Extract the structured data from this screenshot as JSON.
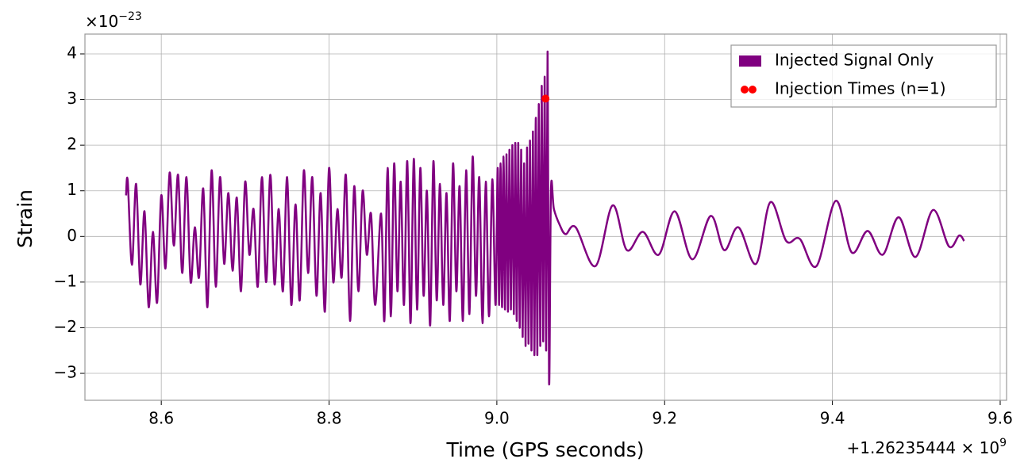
{
  "chart_data": {
    "type": "line",
    "x_label": "Time (GPS seconds)",
    "y_label": "Strain",
    "y_multiplier": "×10",
    "y_exponent": "−23",
    "x_offset": "+1.26235444 × 10",
    "x_offset_exponent": "9",
    "grid": true,
    "legend": "upper right",
    "xlim": [
      8.509,
      9.6076
    ],
    "ylim": [
      -3.59,
      4.434
    ],
    "xticks": [
      8.6,
      8.8,
      {
        "value": 9.0,
        "label": "9.0"
      },
      9.2,
      9.4,
      9.6
    ],
    "yticks": [
      {
        "value": -3,
        "label": "−3"
      },
      {
        "value": -2,
        "label": "−2"
      },
      {
        "value": -1,
        "label": "−1"
      },
      0,
      1,
      2,
      3,
      4
    ],
    "series": [
      {
        "name": "Injected Signal Only",
        "type": "line",
        "color": "#800080",
        "x": [
          8.558,
          8.56,
          8.565,
          8.57,
          8.575,
          8.58,
          8.585,
          8.59,
          8.595,
          8.6,
          8.605,
          8.61,
          8.615,
          8.62,
          8.625,
          8.63,
          8.635,
          8.64,
          8.645,
          8.65,
          8.655,
          8.66,
          8.665,
          8.67,
          8.675,
          8.68,
          8.685,
          8.69,
          8.695,
          8.7,
          8.705,
          8.71,
          8.715,
          8.72,
          8.725,
          8.73,
          8.735,
          8.74,
          8.745,
          8.75,
          8.755,
          8.76,
          8.765,
          8.77,
          8.775,
          8.78,
          8.785,
          8.79,
          8.795,
          8.8,
          8.805,
          8.81,
          8.815,
          8.82,
          8.825,
          8.83,
          8.835,
          8.84,
          8.845,
          8.85,
          8.855,
          8.862,
          8.8659,
          8.8698,
          8.8737,
          8.8776,
          8.8815,
          8.8854,
          8.8893,
          8.8932,
          8.8971,
          8.901,
          8.9049,
          8.9088,
          8.9127,
          8.9166,
          8.9205,
          8.9244,
          8.9283,
          8.9322,
          8.9361,
          8.94,
          8.9439,
          8.9478,
          8.9517,
          8.9556,
          8.9595,
          8.9634,
          8.9673,
          8.9712,
          8.9751,
          8.979,
          8.9829,
          8.9868,
          8.9907,
          8.9946,
          8.9985,
          9.001,
          9.00275,
          9.0045,
          9.00625,
          9.008,
          9.00975,
          9.0115,
          9.01325,
          9.015,
          9.01675,
          9.0185,
          9.02025,
          9.022,
          9.02375,
          9.0255,
          9.02725,
          9.029,
          9.03075,
          9.0325,
          9.03425,
          9.036,
          9.03775,
          9.0395,
          9.04125,
          9.043,
          9.04475,
          9.0465,
          9.04825,
          9.05,
          9.05175,
          9.0535,
          9.05525,
          9.057,
          9.05875,
          9.0605,
          9.06225,
          9.0645,
          9.068,
          9.075,
          9.082,
          9.094,
          9.1175,
          9.138,
          9.155,
          9.174,
          9.193,
          9.212,
          9.233,
          9.255,
          9.271,
          9.288,
          9.309,
          9.326,
          9.345,
          9.361,
          9.381,
          9.404,
          9.423,
          9.442,
          9.46,
          9.479,
          9.499,
          9.52,
          9.539,
          9.551,
          9.557
        ],
        "values": [
          0.9,
          1.22,
          -0.62,
          1.15,
          -1.05,
          0.55,
          -1.55,
          0.1,
          -1.45,
          0.9,
          -0.7,
          1.4,
          -0.2,
          1.35,
          -0.8,
          1.3,
          -1.0,
          0.2,
          -0.9,
          1.05,
          -1.55,
          1.45,
          -1.1,
          1.3,
          -0.6,
          0.95,
          -0.75,
          0.85,
          -1.2,
          1.2,
          -0.4,
          0.6,
          -1.1,
          1.3,
          -1.0,
          1.35,
          -1.05,
          0.6,
          -1.2,
          1.3,
          -1.5,
          0.7,
          -1.4,
          1.45,
          -0.8,
          1.3,
          -1.3,
          0.95,
          -1.65,
          1.5,
          -1.0,
          0.6,
          -0.9,
          1.35,
          -1.85,
          1.1,
          -1.2,
          1.0,
          -0.4,
          0.5,
          -1.5,
          0.5,
          -1.85,
          1.5,
          -1.75,
          1.6,
          -1.2,
          1.2,
          -1.5,
          1.65,
          -1.9,
          1.7,
          -1.6,
          1.5,
          -1.3,
          1.0,
          -1.95,
          1.65,
          -1.4,
          1.15,
          -1.5,
          0.95,
          -1.85,
          1.6,
          -1.2,
          1.1,
          -1.85,
          1.45,
          -1.7,
          1.75,
          -1.3,
          1.3,
          -1.9,
          1.2,
          -1.75,
          1.25,
          -1.5,
          1.5,
          -1.5,
          1.6,
          -1.55,
          1.75,
          -1.6,
          1.8,
          -1.65,
          1.9,
          -1.6,
          2.0,
          -1.7,
          2.05,
          -1.85,
          2.05,
          -2.0,
          1.9,
          -2.2,
          1.6,
          -2.4,
          1.95,
          -2.35,
          2.1,
          -2.5,
          2.3,
          -2.6,
          2.6,
          -2.6,
          2.9,
          -2.4,
          3.3,
          -2.3,
          3.5,
          -2.5,
          4.05,
          -3.2,
          1.0,
          0.6,
          0.25,
          0.05,
          0.2,
          -0.65,
          0.68,
          -0.3,
          0.1,
          -0.4,
          0.55,
          -0.5,
          0.45,
          -0.3,
          0.2,
          -0.6,
          0.75,
          -0.1,
          -0.05,
          -0.65,
          0.78,
          -0.35,
          0.12,
          -0.4,
          0.42,
          -0.45,
          0.58,
          -0.22,
          0.02,
          -0.1
        ]
      },
      {
        "name": "Injection Times (n=1)",
        "type": "scatter",
        "color": "#ff0000",
        "x": [
          9.058
        ],
        "values": [
          3.02
        ]
      }
    ]
  }
}
